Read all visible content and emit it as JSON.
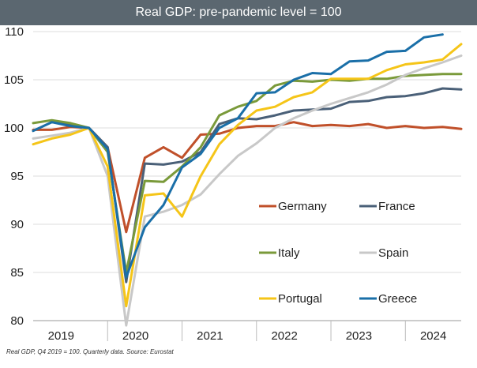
{
  "title": "Real GDP: pre-pandemic level = 100",
  "footnote": "Real GDP, Q4 2019 = 100. Quarterly data. Source: Eurostat",
  "chart_data": {
    "type": "line",
    "title": "Real GDP: pre-pandemic level = 100",
    "xlabel": "",
    "ylabel": "",
    "ylim": [
      80,
      110
    ],
    "yticks": [
      80,
      85,
      90,
      95,
      100,
      105,
      110
    ],
    "xlim": [
      2019.0,
      2024.75
    ],
    "x_tick_labels": [
      "2019",
      "2020",
      "2021",
      "2022",
      "2023",
      "2024"
    ],
    "grid": "horizontal",
    "legend_placement": "lower-right",
    "x": [
      "2019Q1",
      "2019Q2",
      "2019Q3",
      "2019Q4",
      "2020Q1",
      "2020Q2",
      "2020Q3",
      "2020Q4",
      "2021Q1",
      "2021Q2",
      "2021Q3",
      "2021Q4",
      "2022Q1",
      "2022Q2",
      "2022Q3",
      "2022Q4",
      "2023Q1",
      "2023Q2",
      "2023Q3",
      "2023Q4",
      "2024Q1",
      "2024Q2",
      "2024Q3",
      "2024Q4"
    ],
    "series": [
      {
        "name": "Germany",
        "color": "#c0502a",
        "values": [
          99.8,
          99.8,
          100.1,
          100.0,
          98.0,
          89.2,
          96.9,
          98.0,
          96.9,
          99.3,
          99.4,
          100.0,
          100.2,
          100.2,
          100.6,
          100.2,
          100.3,
          100.2,
          100.4,
          100.0,
          100.2,
          100.0,
          100.1,
          99.9
        ]
      },
      {
        "name": "France",
        "color": "#4a6078",
        "values": [
          99.7,
          100.6,
          100.4,
          100.0,
          98.0,
          84.0,
          96.3,
          96.2,
          96.5,
          97.5,
          100.4,
          101.0,
          100.9,
          101.3,
          101.8,
          101.9,
          102.0,
          102.7,
          102.8,
          103.2,
          103.3,
          103.6,
          104.1,
          104.0
        ]
      },
      {
        "name": "Italy",
        "color": "#7a9a3a",
        "values": [
          100.5,
          100.8,
          100.5,
          100.0,
          97.5,
          85.0,
          94.5,
          94.4,
          96.0,
          98.0,
          101.3,
          102.2,
          102.8,
          104.4,
          104.9,
          104.8,
          105.0,
          104.9,
          105.1,
          105.1,
          105.4,
          105.5,
          105.6,
          105.6
        ]
      },
      {
        "name": "Spain",
        "color": "#c8c8c8",
        "values": [
          98.9,
          99.2,
          99.5,
          100.0,
          95.0,
          79.5,
          90.8,
          91.3,
          92.0,
          93.1,
          95.2,
          97.1,
          98.4,
          100.0,
          101.0,
          101.8,
          102.5,
          103.1,
          103.7,
          104.5,
          105.5,
          106.2,
          106.8,
          107.5
        ]
      },
      {
        "name": "Portugal",
        "color": "#f5c518",
        "values": [
          98.3,
          98.9,
          99.3,
          100.0,
          96.0,
          81.5,
          93.0,
          93.2,
          90.8,
          95.0,
          98.3,
          100.3,
          101.8,
          102.2,
          103.2,
          103.7,
          105.1,
          105.1,
          105.1,
          106.0,
          106.6,
          106.8,
          107.1,
          108.7
        ]
      },
      {
        "name": "Greece",
        "color": "#1a6fa8",
        "values": [
          99.7,
          100.6,
          100.2,
          100.0,
          97.8,
          84.5,
          89.7,
          92.0,
          95.9,
          97.3,
          100.0,
          101.0,
          103.6,
          103.7,
          105.0,
          105.7,
          105.6,
          106.9,
          107.0,
          107.9,
          108.0,
          109.4,
          109.7,
          null
        ]
      }
    ]
  }
}
